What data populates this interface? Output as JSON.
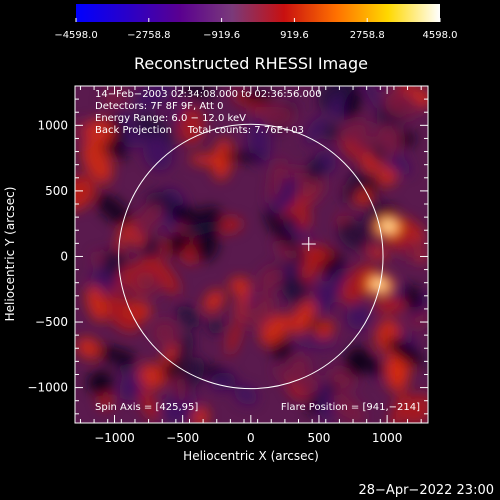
{
  "chart_data": {
    "type": "heatmap",
    "title": "Reconstructed RHESSI Image",
    "xlabel": "Heliocentric X (arcsec)",
    "ylabel": "Heliocentric Y (arcsec)",
    "xlim": [
      -1290,
      1300
    ],
    "ylim": [
      -1270,
      1300
    ],
    "xticks": [
      -1000,
      -500,
      0,
      500,
      1000
    ],
    "yticks": [
      -1000,
      -500,
      0,
      500,
      1000
    ],
    "xtick_labels": [
      "−1000",
      "−500",
      "0",
      "500",
      "1000"
    ],
    "ytick_labels": [
      "−1000",
      "−500",
      "0",
      "500",
      "1000"
    ],
    "colorbar": {
      "min": -4598.0,
      "max": 4598.0,
      "tick_labels": [
        "−4598.0",
        "−2758.8",
        "−919.6",
        "919.6",
        "2758.8",
        "4598.0"
      ],
      "colors": [
        "#0000ff",
        "#2a00c8",
        "#5a0090",
        "#7a3a7a",
        "#c81010",
        "#ff7000",
        "#ffd800",
        "#ffffff"
      ]
    },
    "annotations": [
      "14−Feb−2003 02:34:08.000 to 02:36:56.000",
      "Detectors: 7F 8F 9F, Att 0",
      "Energy Range: 6.0 − 12.0 keV",
      "Back Projection     Total counts: 7.76E+03"
    ],
    "spin_axis_label": "Spin Axis = [425,95]",
    "flare_position_label": "Flare Position = [941,−214]",
    "spin_axis": [
      425,
      95
    ],
    "solar_limb_radius": 970,
    "bright_sources": [
      {
        "x": 1010,
        "y": 230,
        "value": 4598
      },
      {
        "x": 941,
        "y": -214,
        "value": 4300
      }
    ],
    "timestamp": "28−Apr−2022 23:00"
  }
}
